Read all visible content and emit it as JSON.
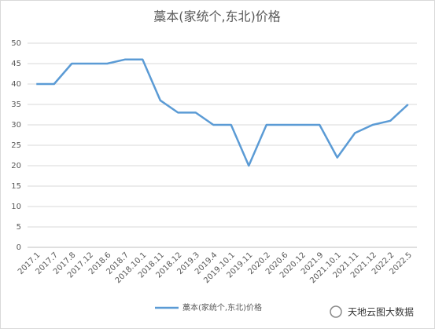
{
  "chart_data": {
    "type": "line",
    "title": "藁本(家统个,东北)价格",
    "categories": [
      "2017.1",
      "2017.7",
      "2017.8",
      "2017.12",
      "2018.6",
      "2018.7",
      "2018.10.1",
      "2018.11",
      "2018.12",
      "2019.3",
      "2019.4",
      "2019.10.1",
      "2019.11",
      "2020.2",
      "2020.6",
      "2020.12",
      "2021.9",
      "2021.10.1",
      "2021.11",
      "2021.12",
      "2022.2",
      "2022.5"
    ],
    "series": [
      {
        "name": "藁本(家统个,东北)价格",
        "color": "#5b9bd5",
        "values": [
          40,
          40,
          45,
          45,
          45,
          46,
          46,
          36,
          33,
          33,
          30,
          30,
          20,
          30,
          30,
          30,
          30,
          22,
          28,
          30,
          31,
          35
        ]
      }
    ],
    "ylim": [
      0,
      50
    ],
    "yticks": [
      0,
      5,
      10,
      15,
      20,
      25,
      30,
      35,
      40,
      45,
      50
    ],
    "grid": true,
    "legend": "bottom",
    "watermark": "天地云图大数据"
  }
}
